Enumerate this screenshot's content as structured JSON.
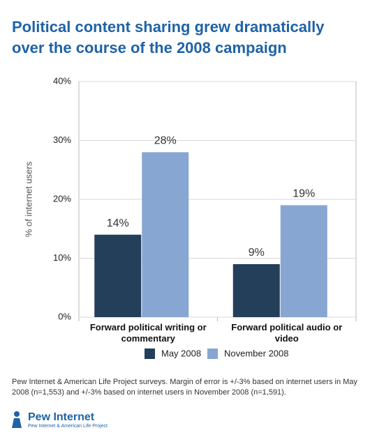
{
  "chart_data": {
    "type": "bar",
    "title": "Political content sharing grew dramatically over the course of the 2008 campaign",
    "y_label": "% of internet users",
    "categories": [
      "Forward political writing or commentary",
      "Forward political audio or video"
    ],
    "series": [
      {
        "name": "May 2008",
        "color": "#243f5a",
        "values": [
          14,
          9
        ],
        "value_labels": [
          "14%",
          "9%"
        ]
      },
      {
        "name": "November 2008",
        "color": "#87a6d2",
        "values": [
          28,
          19
        ],
        "value_labels": [
          "28%",
          "19%"
        ]
      }
    ],
    "ylim": [
      0,
      40
    ],
    "yticks": [
      {
        "value": 0,
        "label": "0%"
      },
      {
        "value": 10,
        "label": "10%"
      },
      {
        "value": 20,
        "label": "20%"
      },
      {
        "value": 30,
        "label": "30%"
      },
      {
        "value": 40,
        "label": "40%"
      }
    ],
    "grid": true,
    "legend": "bottom"
  },
  "footer": {
    "note": "Pew Internet & American Life Project surveys. Margin of error is +/-3% based on internet users in May 2008 (n=1,553) and +/-3% based on internet users in November 2008 (n=1,591).",
    "logo": "Pew Internet",
    "logo_sub": "Pew Internet & American Life Project"
  }
}
